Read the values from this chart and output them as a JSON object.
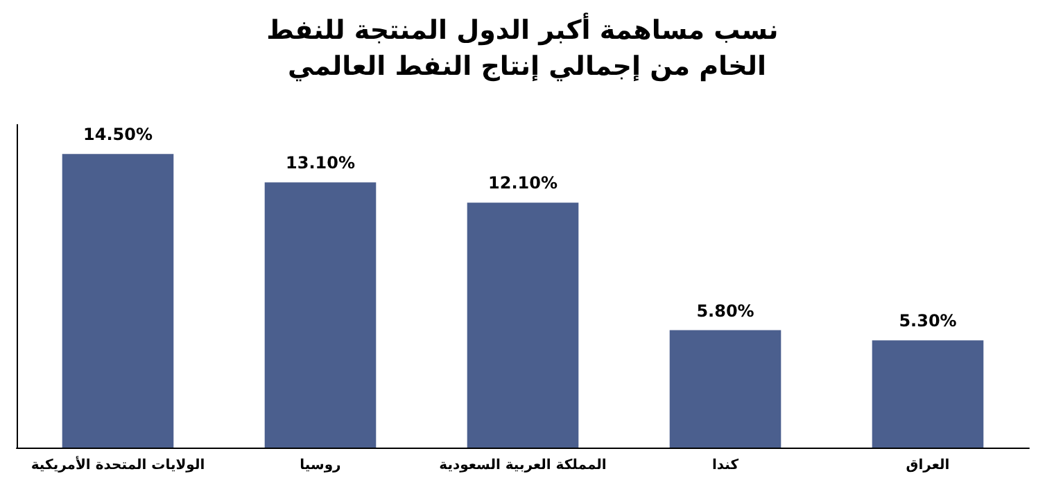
{
  "chart_data": {
    "type": "bar",
    "title": "نسب مساهمة أكبر الدول المنتجة للنفط الخام من إجمالي إنتاج النفط العالمي",
    "categories": [
      "الولايات المتحدة الأمريكية",
      "روسيا",
      "المملكة العربية السعودية",
      "كندا",
      "العراق"
    ],
    "values": [
      14.5,
      13.1,
      12.1,
      5.8,
      5.3
    ],
    "value_labels": [
      "14.50%",
      "13.10%",
      "12.10%",
      "5.80%",
      "5.30%"
    ],
    "color": "#4b5f8e",
    "grid": false
  }
}
